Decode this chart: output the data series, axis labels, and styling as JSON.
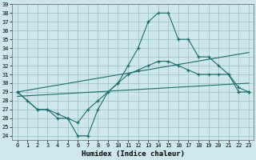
{
  "xlabel": "Humidex (Indice chaleur)",
  "bg_color": "#cce8ec",
  "grid_color": "#9bbfc4",
  "line_color": "#1a6b6b",
  "xlim": [
    -0.5,
    23.5
  ],
  "ylim": [
    23.5,
    39.0
  ],
  "xticks": [
    0,
    1,
    2,
    3,
    4,
    5,
    6,
    7,
    8,
    9,
    10,
    11,
    12,
    13,
    14,
    15,
    16,
    17,
    18,
    19,
    20,
    21,
    22,
    23
  ],
  "yticks": [
    24,
    25,
    26,
    27,
    28,
    29,
    30,
    31,
    32,
    33,
    34,
    35,
    36,
    37,
    38,
    39
  ],
  "series_main": {
    "x": [
      0,
      1,
      2,
      3,
      4,
      5,
      6,
      7,
      8,
      9,
      10,
      11,
      12,
      13,
      14,
      15,
      16,
      17,
      18,
      19,
      20,
      21,
      22,
      23
    ],
    "y": [
      29,
      28,
      27,
      27,
      26,
      26,
      24,
      24,
      27,
      29,
      30,
      32,
      34,
      37,
      38,
      38,
      35,
      35,
      33,
      33,
      32,
      31,
      29,
      29
    ]
  },
  "series_smooth": {
    "x": [
      0,
      2,
      3,
      4,
      5,
      6,
      7,
      8,
      9,
      10,
      11,
      12,
      13,
      14,
      15,
      16,
      17,
      18,
      19,
      20,
      21,
      22,
      23
    ],
    "y": [
      29,
      27,
      27,
      26.5,
      26,
      25.5,
      27,
      28,
      29,
      30,
      31,
      31.5,
      32,
      32.5,
      32.5,
      32,
      31.5,
      31,
      31,
      31,
      31,
      29.5,
      29
    ]
  },
  "series_line1": {
    "x": [
      0,
      23
    ],
    "y": [
      29.0,
      33.5
    ]
  },
  "series_line2": {
    "x": [
      0,
      23
    ],
    "y": [
      28.5,
      30.0
    ]
  },
  "xlabel_fontsize": 6.5,
  "tick_fontsize": 5.0
}
